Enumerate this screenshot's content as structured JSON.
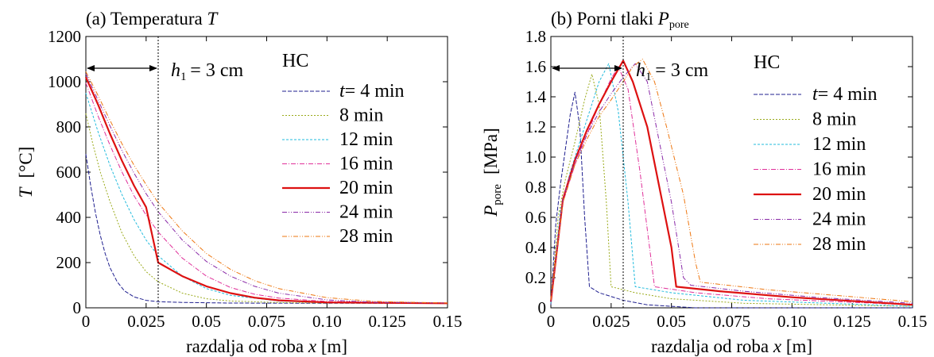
{
  "xlabel_prefix": "razdalja od roba ",
  "xlabel_var": "x",
  "xlabel_unit": " [m]",
  "dim_var": "h",
  "dim_sub": "1",
  "dim_rest": " = 3 cm",
  "legend_title": "HC",
  "legend_first_var": "t",
  "chart_data": [
    {
      "type": "line",
      "title_prefix": "(a) Temperatura ",
      "title_var": "T",
      "ylabel_var": "T",
      "ylabel_unit": "[°C]",
      "xlim": [
        0,
        0.15
      ],
      "ylim": [
        0,
        1200
      ],
      "x_ticks": [
        0,
        0.025,
        0.05,
        0.075,
        0.1,
        0.125,
        0.15
      ],
      "x_tick_labels": [
        "0",
        "0.025",
        "0.05",
        "0.075",
        "0.10",
        "0.125",
        "0.15"
      ],
      "y_ticks": [
        0,
        200,
        400,
        600,
        800,
        1000,
        1200
      ],
      "y_tick_labels": [
        "0",
        "200",
        "400",
        "600",
        "800",
        "1000",
        "1200"
      ],
      "marker_x": 0.03,
      "legend_position": "top-right",
      "series": [
        {
          "name": "= 4 min",
          "color": "#1f1f8f",
          "dash": "5,2",
          "width": 1.0,
          "points": [
            [
              0,
              680
            ],
            [
              0.002,
              540
            ],
            [
              0.004,
              420
            ],
            [
              0.006,
              320
            ],
            [
              0.008,
              240
            ],
            [
              0.01,
              178
            ],
            [
              0.013,
              115
            ],
            [
              0.016,
              75
            ],
            [
              0.02,
              48
            ],
            [
              0.025,
              33
            ],
            [
              0.03,
              27
            ],
            [
              0.04,
              24
            ],
            [
              0.06,
              21
            ],
            [
              0.1,
              20
            ],
            [
              0.15,
              20
            ]
          ]
        },
        {
          "name": "8 min",
          "color": "#9aaa1a",
          "dash": "2,2",
          "width": 1.0,
          "points": [
            [
              0,
              860
            ],
            [
              0.003,
              720
            ],
            [
              0.006,
              600
            ],
            [
              0.01,
              470
            ],
            [
              0.015,
              330
            ],
            [
              0.02,
              230
            ],
            [
              0.025,
              160
            ],
            [
              0.03,
              115
            ],
            [
              0.04,
              65
            ],
            [
              0.05,
              40
            ],
            [
              0.06,
              30
            ],
            [
              0.08,
              23
            ],
            [
              0.1,
              21
            ],
            [
              0.15,
              20
            ]
          ]
        },
        {
          "name": "12 min",
          "color": "#22bbdd",
          "dash": "3,2",
          "width": 1.0,
          "points": [
            [
              0,
              950
            ],
            [
              0.005,
              780
            ],
            [
              0.01,
              630
            ],
            [
              0.015,
              500
            ],
            [
              0.02,
              390
            ],
            [
              0.025,
              300
            ],
            [
              0.03,
              230
            ],
            [
              0.04,
              140
            ],
            [
              0.05,
              85
            ],
            [
              0.06,
              55
            ],
            [
              0.08,
              30
            ],
            [
              0.1,
              23
            ],
            [
              0.15,
              20
            ]
          ]
        },
        {
          "name": "16 min",
          "color": "#e0309a",
          "dash": "6,2,1,2",
          "width": 1.0,
          "points": [
            [
              0,
              995
            ],
            [
              0.005,
              850
            ],
            [
              0.01,
              720
            ],
            [
              0.015,
              600
            ],
            [
              0.02,
              495
            ],
            [
              0.025,
              410
            ],
            [
              0.03,
              335
            ],
            [
              0.04,
              220
            ],
            [
              0.05,
              140
            ],
            [
              0.06,
              90
            ],
            [
              0.07,
              60
            ],
            [
              0.08,
              43
            ],
            [
              0.1,
              28
            ],
            [
              0.15,
              21
            ]
          ]
        },
        {
          "name": "20 min",
          "color": "#dd1111",
          "dash": "",
          "width": 2.2,
          "points": [
            [
              0,
              1020
            ],
            [
              0.005,
              900
            ],
            [
              0.01,
              770
            ],
            [
              0.015,
              650
            ],
            [
              0.02,
              540
            ],
            [
              0.025,
              445
            ],
            [
              0.03,
              200
            ],
            [
              0.035,
              170
            ],
            [
              0.04,
              140
            ],
            [
              0.05,
              95
            ],
            [
              0.06,
              65
            ],
            [
              0.07,
              45
            ],
            [
              0.08,
              33
            ],
            [
              0.1,
              24
            ],
            [
              0.15,
              20
            ]
          ]
        },
        {
          "name": "24 min",
          "color": "#8a2aa8",
          "dash": "6,2,1,2,1,2",
          "width": 1.0,
          "points": [
            [
              0,
              1035
            ],
            [
              0.005,
              920
            ],
            [
              0.01,
              805
            ],
            [
              0.015,
              695
            ],
            [
              0.02,
              595
            ],
            [
              0.025,
              505
            ],
            [
              0.03,
              425
            ],
            [
              0.04,
              300
            ],
            [
              0.05,
              205
            ],
            [
              0.06,
              140
            ],
            [
              0.07,
              95
            ],
            [
              0.08,
              65
            ],
            [
              0.1,
              35
            ],
            [
              0.12,
              24
            ],
            [
              0.15,
              21
            ]
          ]
        },
        {
          "name": "28 min",
          "color": "#ee7711",
          "dash": "6,2,1,2,1,2",
          "width": 1.0,
          "points": [
            [
              0,
              1045
            ],
            [
              0.005,
              940
            ],
            [
              0.01,
              830
            ],
            [
              0.015,
              725
            ],
            [
              0.02,
              630
            ],
            [
              0.025,
              545
            ],
            [
              0.03,
              465
            ],
            [
              0.04,
              340
            ],
            [
              0.05,
              240
            ],
            [
              0.06,
              170
            ],
            [
              0.07,
              120
            ],
            [
              0.08,
              85
            ],
            [
              0.1,
              45
            ],
            [
              0.12,
              28
            ],
            [
              0.15,
              21
            ]
          ]
        }
      ]
    },
    {
      "type": "line",
      "title_prefix": "(b)  Porni tlaki ",
      "title_var": "P",
      "title_sub": "pore",
      "ylabel_var": "P",
      "ylabel_sub": "pore",
      "ylabel_unit": "[MPa]",
      "xlim": [
        0,
        0.15
      ],
      "ylim": [
        0,
        1.8
      ],
      "x_ticks": [
        0,
        0.025,
        0.05,
        0.075,
        0.1,
        0.125,
        0.15
      ],
      "x_tick_labels": [
        "0",
        "0.025",
        "0.05",
        "0.075",
        "0.10",
        "0.125",
        "0.15"
      ],
      "y_ticks": [
        0,
        0.2,
        0.4,
        0.6,
        0.8,
        1.0,
        1.2,
        1.4,
        1.6,
        1.8
      ],
      "y_tick_labels": [
        "0",
        "0.2",
        "0.4",
        "0.6",
        "0.8",
        "1.0",
        "1.2",
        "1.4",
        "1.6",
        "1.8"
      ],
      "marker_x": 0.03,
      "legend_position": "right",
      "series": [
        {
          "name": "= 4 min",
          "color": "#1f1f8f",
          "dash": "5,2",
          "width": 1.0,
          "points": [
            [
              0,
              0.02
            ],
            [
              0.002,
              0.55
            ],
            [
              0.004,
              0.82
            ],
            [
              0.006,
              1.05
            ],
            [
              0.008,
              1.28
            ],
            [
              0.01,
              1.43
            ],
            [
              0.012,
              1.2
            ],
            [
              0.014,
              0.6
            ],
            [
              0.016,
              0.14
            ],
            [
              0.02,
              0.1
            ],
            [
              0.03,
              0.05
            ],
            [
              0.04,
              0.02
            ],
            [
              0.06,
              0.0
            ],
            [
              0.15,
              0.0
            ]
          ]
        },
        {
          "name": "8 min",
          "color": "#9aaa1a",
          "dash": "2,2",
          "width": 1.0,
          "points": [
            [
              0,
              0.03
            ],
            [
              0.003,
              0.6
            ],
            [
              0.006,
              0.85
            ],
            [
              0.01,
              1.1
            ],
            [
              0.014,
              1.38
            ],
            [
              0.017,
              1.55
            ],
            [
              0.02,
              1.35
            ],
            [
              0.023,
              0.7
            ],
            [
              0.025,
              0.14
            ],
            [
              0.035,
              0.1
            ],
            [
              0.05,
              0.06
            ],
            [
              0.08,
              0.03
            ],
            [
              0.15,
              0.01
            ]
          ]
        },
        {
          "name": "12 min",
          "color": "#22bbdd",
          "dash": "3,2",
          "width": 1.0,
          "points": [
            [
              0,
              0.03
            ],
            [
              0.004,
              0.65
            ],
            [
              0.008,
              0.9
            ],
            [
              0.012,
              1.1
            ],
            [
              0.016,
              1.3
            ],
            [
              0.02,
              1.5
            ],
            [
              0.024,
              1.62
            ],
            [
              0.028,
              1.3
            ],
            [
              0.032,
              0.7
            ],
            [
              0.035,
              0.14
            ],
            [
              0.05,
              0.1
            ],
            [
              0.08,
              0.05
            ],
            [
              0.15,
              0.01
            ]
          ]
        },
        {
          "name": "16 min",
          "color": "#e0309a",
          "dash": "6,2,1,2",
          "width": 1.0,
          "points": [
            [
              0,
              0.04
            ],
            [
              0.005,
              0.7
            ],
            [
              0.01,
              0.95
            ],
            [
              0.015,
              1.15
            ],
            [
              0.02,
              1.35
            ],
            [
              0.025,
              1.52
            ],
            [
              0.028,
              1.6
            ],
            [
              0.032,
              1.45
            ],
            [
              0.037,
              0.9
            ],
            [
              0.043,
              0.14
            ],
            [
              0.06,
              0.1
            ],
            [
              0.09,
              0.06
            ],
            [
              0.15,
              0.02
            ]
          ]
        },
        {
          "name": "20 min",
          "color": "#dd1111",
          "dash": "",
          "width": 2.2,
          "points": [
            [
              0,
              0.04
            ],
            [
              0.005,
              0.72
            ],
            [
              0.01,
              0.98
            ],
            [
              0.015,
              1.18
            ],
            [
              0.02,
              1.35
            ],
            [
              0.025,
              1.5
            ],
            [
              0.03,
              1.64
            ],
            [
              0.034,
              1.5
            ],
            [
              0.04,
              1.2
            ],
            [
              0.045,
              0.8
            ],
            [
              0.05,
              0.4
            ],
            [
              0.052,
              0.14
            ],
            [
              0.07,
              0.11
            ],
            [
              0.1,
              0.07
            ],
            [
              0.15,
              0.02
            ]
          ]
        },
        {
          "name": "24 min",
          "color": "#8a2aa8",
          "dash": "6,2,1,2,1,2",
          "width": 1.0,
          "points": [
            [
              0,
              0.04
            ],
            [
              0.005,
              0.72
            ],
            [
              0.01,
              0.97
            ],
            [
              0.015,
              1.15
            ],
            [
              0.02,
              1.3
            ],
            [
              0.025,
              1.42
            ],
            [
              0.03,
              1.53
            ],
            [
              0.035,
              1.62
            ],
            [
              0.04,
              1.5
            ],
            [
              0.045,
              1.1
            ],
            [
              0.05,
              0.7
            ],
            [
              0.055,
              0.2
            ],
            [
              0.058,
              0.15
            ],
            [
              0.08,
              0.11
            ],
            [
              0.11,
              0.07
            ],
            [
              0.15,
              0.03
            ]
          ]
        },
        {
          "name": "28 min",
          "color": "#ee7711",
          "dash": "6,2,1,2,1,2",
          "width": 1.0,
          "points": [
            [
              0,
              0.05
            ],
            [
              0.005,
              0.7
            ],
            [
              0.01,
              0.95
            ],
            [
              0.015,
              1.12
            ],
            [
              0.02,
              1.27
            ],
            [
              0.025,
              1.38
            ],
            [
              0.03,
              1.5
            ],
            [
              0.034,
              1.6
            ],
            [
              0.038,
              1.65
            ],
            [
              0.043,
              1.5
            ],
            [
              0.048,
              1.2
            ],
            [
              0.055,
              0.75
            ],
            [
              0.06,
              0.3
            ],
            [
              0.062,
              0.17
            ],
            [
              0.09,
              0.12
            ],
            [
              0.12,
              0.08
            ],
            [
              0.15,
              0.04
            ]
          ]
        }
      ]
    }
  ]
}
